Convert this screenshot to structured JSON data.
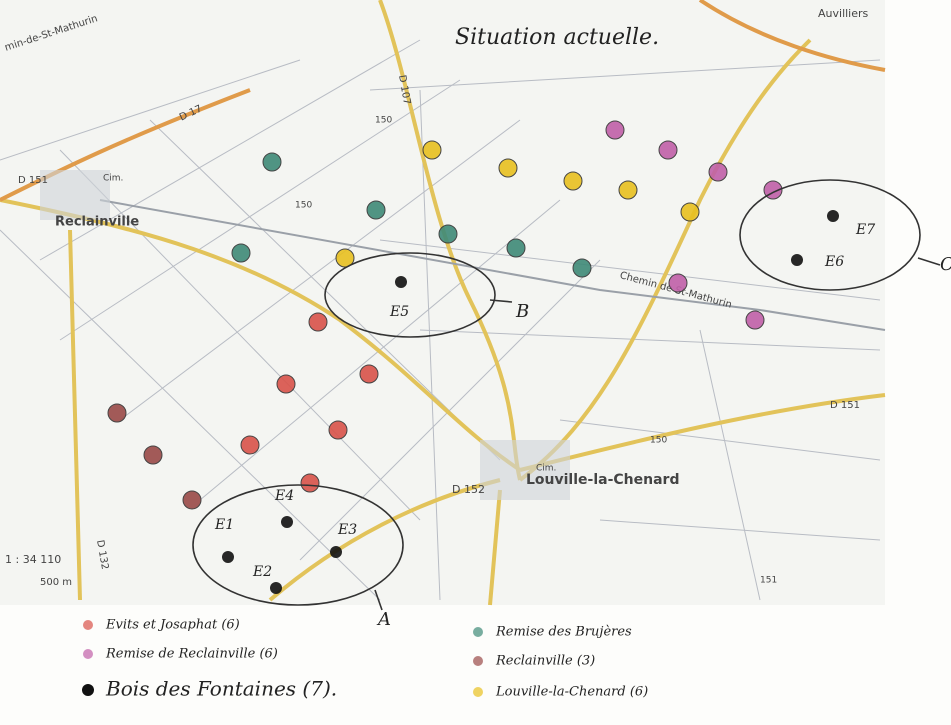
{
  "title": "Situation actuelle.",
  "map_labels": [
    "min-de-St-Mathurin",
    "D 17",
    "D 151",
    "Reclainville",
    "D 107",
    "Auvilliers",
    "Chemin de St-Mathurin",
    "D 151",
    "Louville-la-Chenard",
    "D 152",
    "D 132",
    "1 : 34 110",
    "500 m",
    "150",
    "150",
    "150",
    "151",
    "Cim.",
    "Cim."
  ],
  "markers": [
    "E1",
    "E2",
    "E3",
    "E4",
    "E5",
    "E6",
    "E7"
  ],
  "zones": [
    "A",
    "B",
    "C"
  ],
  "legend": [
    {
      "label": "Evits et Josaphat (6)",
      "color": "#d9534a"
    },
    {
      "label": "Remise de Reclainville (6)",
      "color": "#c060a8"
    },
    {
      "label": "Bois des Fontaines (7).",
      "color": "#111111"
    },
    {
      "label": "Remise des Brujères",
      "color": "#3f8a78"
    },
    {
      "label": "Reclainville (3)",
      "color": "#9a4a48"
    },
    {
      "label": "Louville-la-Chenard (6)",
      "color": "#e8c020"
    }
  ]
}
